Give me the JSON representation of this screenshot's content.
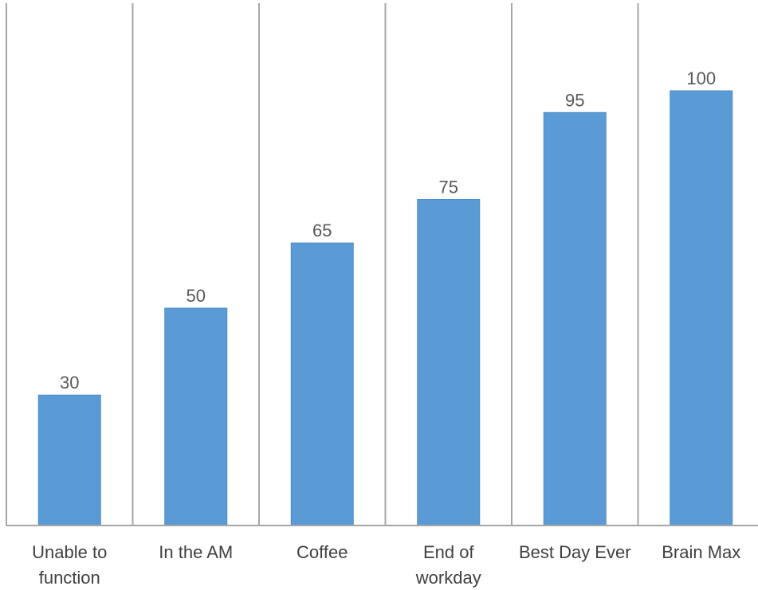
{
  "chart_data": {
    "type": "bar",
    "categories": [
      "Unable to function",
      "In the AM",
      "Coffee",
      "End of workday",
      "Best Day Ever",
      "Brain Max"
    ],
    "category_lines": [
      [
        "Unable to",
        "function"
      ],
      [
        "In the AM"
      ],
      [
        "Coffee"
      ],
      [
        "End of",
        "workday"
      ],
      [
        "Best Day Ever"
      ],
      [
        "Brain Max"
      ]
    ],
    "values": [
      30,
      50,
      65,
      75,
      95,
      100
    ],
    "data_labels": [
      "30",
      "50",
      "65",
      "75",
      "95",
      "100"
    ],
    "ylim": [
      0,
      120
    ],
    "grid": "vertical category separators",
    "legend": "none",
    "colors": {
      "bar": "#5B9BD5",
      "bar_edge": "#4F8CC9",
      "grid": "#A6A6A6",
      "axis": "#A6A6A6",
      "value_text": "#595959",
      "category_text": "#404040"
    }
  }
}
